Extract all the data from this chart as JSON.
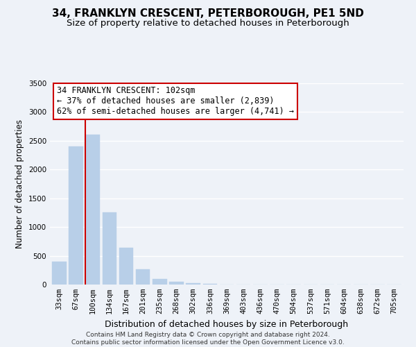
{
  "title": "34, FRANKLYN CRESCENT, PETERBOROUGH, PE1 5ND",
  "subtitle": "Size of property relative to detached houses in Peterborough",
  "xlabel": "Distribution of detached houses by size in Peterborough",
  "ylabel": "Number of detached properties",
  "bar_labels": [
    "33sqm",
    "67sqm",
    "100sqm",
    "134sqm",
    "167sqm",
    "201sqm",
    "235sqm",
    "268sqm",
    "302sqm",
    "336sqm",
    "369sqm",
    "403sqm",
    "436sqm",
    "470sqm",
    "504sqm",
    "537sqm",
    "571sqm",
    "604sqm",
    "638sqm",
    "672sqm",
    "705sqm"
  ],
  "bar_values": [
    400,
    2400,
    2610,
    1250,
    640,
    260,
    100,
    50,
    20,
    8,
    3,
    1,
    0,
    0,
    0,
    0,
    0,
    0,
    0,
    0,
    0
  ],
  "bar_color": "#b8cfe8",
  "bar_edge_color": "#b8cfe8",
  "vline_color": "#cc0000",
  "ylim": [
    0,
    3500
  ],
  "yticks": [
    0,
    500,
    1000,
    1500,
    2000,
    2500,
    3000,
    3500
  ],
  "annotation_line1": "34 FRANKLYN CRESCENT: 102sqm",
  "annotation_line2": "← 37% of detached houses are smaller (2,839)",
  "annotation_line3": "62% of semi-detached houses are larger (4,741) →",
  "annotation_box_color": "#ffffff",
  "annotation_box_edge_color": "#cc0000",
  "footer_line1": "Contains HM Land Registry data © Crown copyright and database right 2024.",
  "footer_line2": "Contains public sector information licensed under the Open Government Licence v3.0.",
  "background_color": "#eef2f8",
  "plot_bg_color": "#eef2f8",
  "grid_color": "#ffffff",
  "title_fontsize": 11,
  "subtitle_fontsize": 9.5,
  "xlabel_fontsize": 9,
  "ylabel_fontsize": 8.5,
  "tick_fontsize": 7.5,
  "annotation_fontsize": 8.5,
  "footer_fontsize": 6.5
}
